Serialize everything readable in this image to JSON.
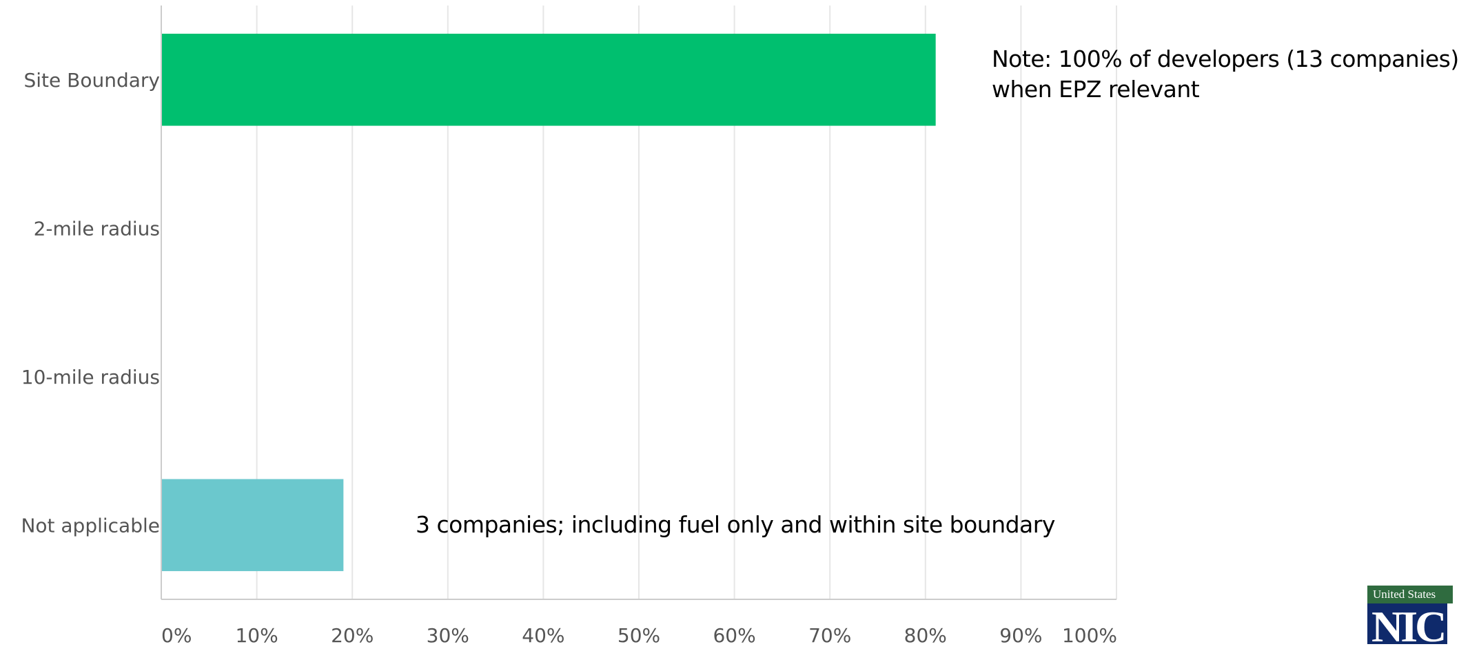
{
  "chart_data": {
    "type": "bar",
    "orientation": "horizontal",
    "categories": [
      "Site Boundary",
      "2-mile radius",
      "10-mile radius",
      "Not applicable"
    ],
    "values": [
      81,
      0,
      0,
      19
    ],
    "colors": [
      "#00bf6f",
      "#00bf6f",
      "#00bf6f",
      "#6bc8cd"
    ],
    "xlim": [
      0,
      100
    ],
    "xticks": [
      "0%",
      "10%",
      "20%",
      "30%",
      "40%",
      "50%",
      "60%",
      "70%",
      "80%",
      "90%",
      "100%"
    ],
    "grid": true,
    "legend": "none",
    "annotations": [
      {
        "lines": [
          "Note: 100% of developers (13 companies)",
          "when EPZ relevant"
        ]
      },
      {
        "lines": [
          "3 companies; including fuel only and within site boundary"
        ]
      }
    ]
  },
  "logo": {
    "top_text": "United States",
    "mark": "NIC"
  }
}
